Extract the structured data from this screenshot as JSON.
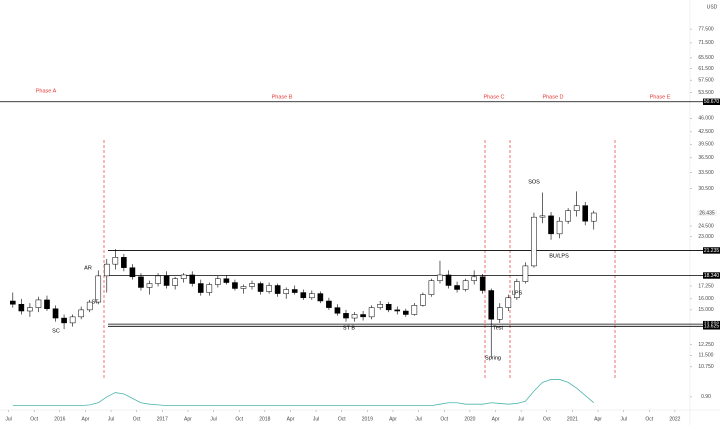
{
  "chart_data": {
    "type": "candlestick",
    "currency": "USD",
    "log_scale": true,
    "x": [
      "2015-07",
      "2015-08",
      "2015-09",
      "2015-10",
      "2015-11",
      "2015-12",
      "2016-01",
      "2016-02",
      "2016-03",
      "2016-04",
      "2016-05",
      "2016-06",
      "2016-07",
      "2016-08",
      "2016-09",
      "2016-10",
      "2016-11",
      "2016-12",
      "2017-01",
      "2017-02",
      "2017-03",
      "2017-04",
      "2017-05",
      "2017-06",
      "2017-07",
      "2017-08",
      "2017-09",
      "2017-10",
      "2017-11",
      "2017-12",
      "2018-01",
      "2018-02",
      "2018-03",
      "2018-04",
      "2018-05",
      "2018-06",
      "2018-07",
      "2018-08",
      "2018-09",
      "2018-10",
      "2018-11",
      "2018-12",
      "2019-01",
      "2019-02",
      "2019-03",
      "2019-04",
      "2019-05",
      "2019-06",
      "2019-07",
      "2019-08",
      "2019-09",
      "2019-10",
      "2019-11",
      "2019-12",
      "2020-01",
      "2020-02",
      "2020-03",
      "2020-04",
      "2020-05",
      "2020-06",
      "2020-07",
      "2020-08",
      "2020-09",
      "2020-10",
      "2020-11",
      "2020-12",
      "2021-01",
      "2021-02",
      "2021-03"
    ],
    "open": [
      15.8,
      15.5,
      14.9,
      15.2,
      15.9,
      15.1,
      14.3,
      13.9,
      14.4,
      15.0,
      15.7,
      18.3,
      19.6,
      20.4,
      19.2,
      18.2,
      17.1,
      17.5,
      18.3,
      17.3,
      18.0,
      18.4,
      17.5,
      16.6,
      17.4,
      18.0,
      17.6,
      17.0,
      17.2,
      17.5,
      16.7,
      17.3,
      16.5,
      16.9,
      16.6,
      16.1,
      16.5,
      15.8,
      15.2,
      14.7,
      14.3,
      14.6,
      14.4,
      15.2,
      15.5,
      15.0,
      14.9,
      14.6,
      15.4,
      16.4,
      17.8,
      18.4,
      17.3,
      16.9,
      17.8,
      18.2,
      16.8,
      14.2,
      15.2,
      16.1,
      17.7,
      19.4,
      25.8,
      26.0,
      23.4,
      25.2,
      26.8,
      27.6,
      25.2
    ],
    "high": [
      16.6,
      16.0,
      15.6,
      16.2,
      16.3,
      15.4,
      14.6,
      14.6,
      15.3,
      15.9,
      18.9,
      20.2,
      21.4,
      20.8,
      19.6,
      18.6,
      17.8,
      18.6,
      18.8,
      18.2,
      18.6,
      18.8,
      17.9,
      17.6,
      18.3,
      18.4,
      17.9,
      17.4,
      17.8,
      17.7,
      17.6,
      17.5,
      17.1,
      17.3,
      16.9,
      16.8,
      16.7,
      16.1,
      15.5,
      15.0,
      14.8,
      14.9,
      15.4,
      15.8,
      15.7,
      15.3,
      15.1,
      15.6,
      16.6,
      18.0,
      20.0,
      18.9,
      17.7,
      18.0,
      18.9,
      18.5,
      17.0,
      15.6,
      16.4,
      18.0,
      19.8,
      26.5,
      29.8,
      26.6,
      25.8,
      27.2,
      30.0,
      28.2,
      26.8
    ],
    "low": [
      15.2,
      14.6,
      14.4,
      14.8,
      14.9,
      14.0,
      13.4,
      13.6,
      14.2,
      14.8,
      15.5,
      16.6,
      19.0,
      18.8,
      17.9,
      16.8,
      16.4,
      17.2,
      17.0,
      16.9,
      17.6,
      17.2,
      16.3,
      16.3,
      17.1,
      17.4,
      16.8,
      16.5,
      16.9,
      16.4,
      16.5,
      16.2,
      16.0,
      16.4,
      15.9,
      15.9,
      15.6,
      15.0,
      14.5,
      14.0,
      14.0,
      14.1,
      14.2,
      15.0,
      14.8,
      14.6,
      14.4,
      14.5,
      15.3,
      16.2,
      17.5,
      17.0,
      16.6,
      16.7,
      17.4,
      16.5,
      11.3,
      13.9,
      14.9,
      15.9,
      17.5,
      19.2,
      24.9,
      22.6,
      22.8,
      24.8,
      25.9,
      24.6,
      24.0
    ],
    "close": [
      15.5,
      14.9,
      15.2,
      15.9,
      15.1,
      14.3,
      13.9,
      14.4,
      15.0,
      15.7,
      18.3,
      19.6,
      20.4,
      19.2,
      18.2,
      17.1,
      17.5,
      18.3,
      17.3,
      18.0,
      18.4,
      17.5,
      16.6,
      17.4,
      18.0,
      17.6,
      17.0,
      17.2,
      17.5,
      16.7,
      17.3,
      16.5,
      16.9,
      16.6,
      16.1,
      16.5,
      15.8,
      15.2,
      14.7,
      14.3,
      14.6,
      14.4,
      15.2,
      15.5,
      15.0,
      14.9,
      14.6,
      15.4,
      16.4,
      17.8,
      18.4,
      17.3,
      16.9,
      17.8,
      18.2,
      16.8,
      14.2,
      15.2,
      16.1,
      17.7,
      19.4,
      25.8,
      26.0,
      23.4,
      25.2,
      26.8,
      27.6,
      25.2,
      26.435
    ],
    "ylim": [
      10.07,
      87.7
    ],
    "yticks": [
      {
        "value": 77.5,
        "label": "77.500"
      },
      {
        "value": 71.5,
        "label": "71.500"
      },
      {
        "value": 65.5,
        "label": "65.500"
      },
      {
        "value": 61.5,
        "label": "61.500"
      },
      {
        "value": 57.5,
        "label": "57.500"
      },
      {
        "value": 53.5,
        "label": "53.500"
      },
      {
        "value": 46,
        "label": "46.000"
      },
      {
        "value": 42.5,
        "label": "42.500"
      },
      {
        "value": 39.5,
        "label": "39.500"
      },
      {
        "value": 36.5,
        "label": "36.500"
      },
      {
        "value": 33.5,
        "label": "33.500"
      },
      {
        "value": 30.5,
        "label": "30.500"
      },
      {
        "value": 24.5,
        "label": "24.500"
      },
      {
        "value": 23,
        "label": "23.000"
      },
      {
        "value": 17.25,
        "label": "17.250"
      },
      {
        "value": 16,
        "label": "16.000"
      },
      {
        "value": 15,
        "label": "15.000"
      },
      {
        "value": 12.25,
        "label": "12.250"
      },
      {
        "value": 11.5,
        "label": "11.500"
      },
      {
        "value": 10.75,
        "label": "10.750"
      }
    ],
    "xlim": [
      "2015-06",
      "2022-03"
    ],
    "xticks": [
      {
        "value": "2015-07",
        "label": "Jul"
      },
      {
        "value": "2015-10",
        "label": "Oct"
      },
      {
        "value": "2016-01",
        "label": "2016"
      },
      {
        "value": "2016-04",
        "label": "Apr"
      },
      {
        "value": "2016-07",
        "label": "Jul"
      },
      {
        "value": "2016-10",
        "label": "Oct"
      },
      {
        "value": "2017-01",
        "label": "2017"
      },
      {
        "value": "2017-04",
        "label": "Apr"
      },
      {
        "value": "2017-07",
        "label": "Jul"
      },
      {
        "value": "2017-10",
        "label": "Oct"
      },
      {
        "value": "2018-01",
        "label": "2018"
      },
      {
        "value": "2018-04",
        "label": "Apr"
      },
      {
        "value": "2018-07",
        "label": "Jul"
      },
      {
        "value": "2018-10",
        "label": "Oct"
      },
      {
        "value": "2019-01",
        "label": "2019"
      },
      {
        "value": "2019-04",
        "label": "Apr"
      },
      {
        "value": "2019-07",
        "label": "Jul"
      },
      {
        "value": "2019-10",
        "label": "Oct"
      },
      {
        "value": "2020-01",
        "label": "2020"
      },
      {
        "value": "2020-04",
        "label": "Apr"
      },
      {
        "value": "2020-07",
        "label": "Jul"
      },
      {
        "value": "2020-10",
        "label": "Oct"
      },
      {
        "value": "2021-01",
        "label": "2021"
      },
      {
        "value": "2021-04",
        "label": "Apr"
      },
      {
        "value": "2021-07",
        "label": "Jul"
      },
      {
        "value": "2021-10",
        "label": "Oct"
      },
      {
        "value": "2022-01",
        "label": "2022"
      }
    ],
    "levels": [
      {
        "value": 50.67,
        "label": "50.670"
      },
      {
        "value": 21.235,
        "label": "21.235"
      },
      {
        "value": 18.34,
        "label": "18.340"
      },
      {
        "value": 13.8,
        "label": "13.800"
      },
      {
        "value": 13.625,
        "label": "13.625"
      }
    ],
    "phases": [
      "Phase A",
      "Phase B",
      "Phase C",
      "Phase D",
      "Phase E"
    ],
    "annotations": [
      "SC",
      "AR",
      "ST",
      "ST B",
      "Spring",
      "Test",
      "LPS",
      "SOS",
      "BU/LPS"
    ],
    "indicator": {
      "color": "#4db6ac",
      "ylim": [
        0,
        2.2
      ],
      "yticks": [
        {
          "value": 0.9,
          "label": "0.90"
        }
      ],
      "values": [
        0.3,
        0.3,
        0.3,
        0.3,
        0.3,
        0.3,
        0.3,
        0.3,
        0.3,
        0.35,
        0.5,
        0.9,
        1.2,
        1.1,
        0.8,
        0.5,
        0.4,
        0.35,
        0.3,
        0.3,
        0.3,
        0.3,
        0.3,
        0.3,
        0.3,
        0.3,
        0.3,
        0.3,
        0.3,
        0.3,
        0.3,
        0.3,
        0.3,
        0.3,
        0.3,
        0.3,
        0.3,
        0.3,
        0.3,
        0.3,
        0.3,
        0.3,
        0.3,
        0.3,
        0.3,
        0.3,
        0.3,
        0.3,
        0.3,
        0.3,
        0.4,
        0.5,
        0.5,
        0.4,
        0.4,
        0.4,
        0.5,
        0.45,
        0.4,
        0.45,
        0.6,
        1.3,
        1.9,
        2.1,
        2.1,
        1.9,
        1.5,
        1.0,
        0.5
      ]
    }
  }
}
